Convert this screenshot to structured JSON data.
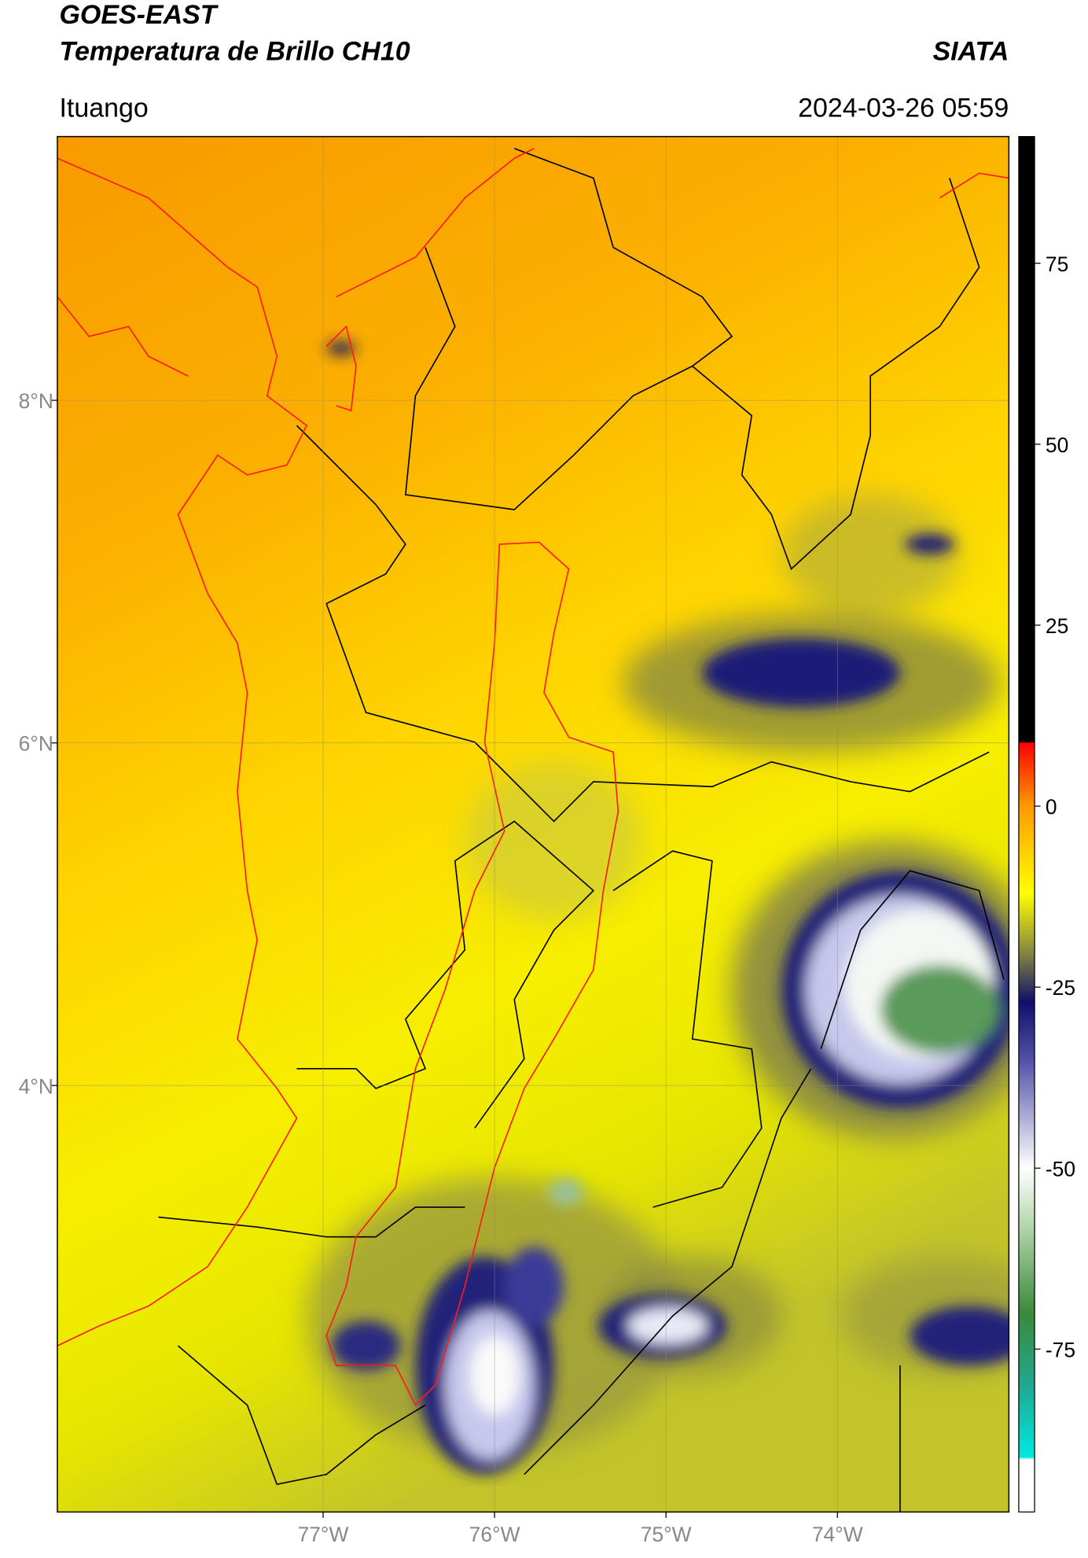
{
  "header": {
    "title": "GOES-EAST",
    "subtitle": "Temperatura de Brillo CH10",
    "source": "SIATA",
    "location": "Ituango",
    "datetime": "2024-03-26 05:59"
  },
  "map": {
    "xlim": [
      -78.55,
      -73.0
    ],
    "ylim": [
      1.51,
      9.54
    ],
    "xticks": [
      {
        "value": -77,
        "label": "77°W"
      },
      {
        "value": -76,
        "label": "76°W"
      },
      {
        "value": -75,
        "label": "75°W"
      },
      {
        "value": -74,
        "label": "74°W"
      }
    ],
    "yticks": [
      {
        "value": 4,
        "label": "4°N"
      },
      {
        "value": 6,
        "label": "6°N"
      },
      {
        "value": 8,
        "label": "8°N"
      }
    ],
    "grid": true
  },
  "colorbar": {
    "lim": [
      -97.5,
      92.5
    ],
    "ticks": [
      -75,
      -50,
      -25,
      0,
      25,
      50,
      75
    ]
  }
}
